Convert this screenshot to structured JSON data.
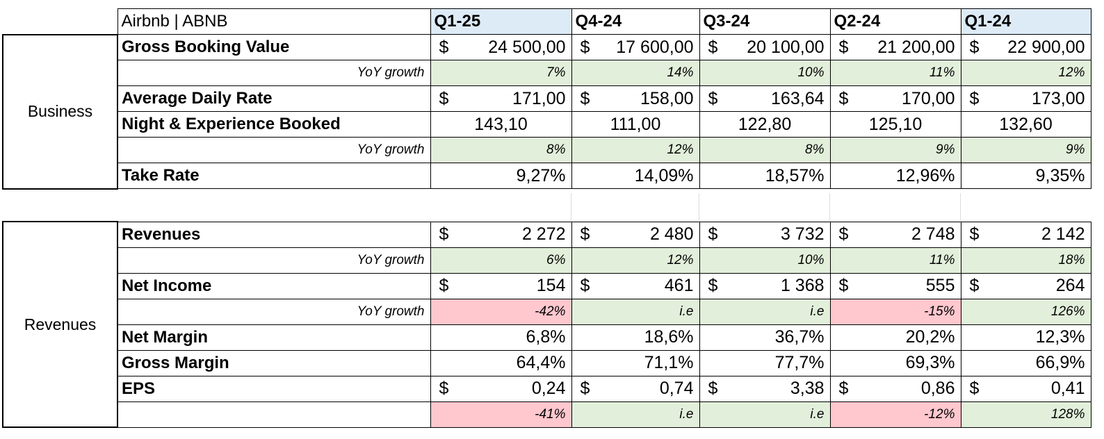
{
  "header": {
    "title": "Airbnb | ABNB",
    "quarters": [
      "Q1-25",
      "Q4-24",
      "Q3-24",
      "Q2-24",
      "Q1-24"
    ]
  },
  "business": {
    "section_label": "Business",
    "gbv": {
      "label": "Gross Booking Value",
      "currency": "$",
      "values": [
        "24 500,00",
        "17 600,00",
        "20 100,00",
        "21 200,00",
        "22 900,00"
      ]
    },
    "gbv_yoy": {
      "label": "YoY growth",
      "values": [
        "7%",
        "14%",
        "10%",
        "11%",
        "12%"
      ]
    },
    "adr": {
      "label": "Average Daily Rate",
      "currency": "$",
      "values": [
        "171,00",
        "158,00",
        "163,64",
        "170,00",
        "173,00"
      ]
    },
    "nights": {
      "label": "Night & Experience Booked",
      "values": [
        "143,10",
        "111,00",
        "122,80",
        "125,10",
        "132,60"
      ]
    },
    "nights_yoy": {
      "label": "YoY growth",
      "values": [
        "8%",
        "12%",
        "8%",
        "9%",
        "9%"
      ]
    },
    "take_rate": {
      "label": "Take Rate",
      "values": [
        "9,27%",
        "14,09%",
        "18,57%",
        "12,96%",
        "9,35%"
      ]
    }
  },
  "revenues": {
    "section_label": "Revenues",
    "revenues": {
      "label": "Revenues",
      "currency": "$",
      "values": [
        "2 272",
        "2 480",
        "3 732",
        "2 748",
        "2 142"
      ]
    },
    "revenues_yoy": {
      "label": "YoY growth",
      "values": [
        "6%",
        "12%",
        "10%",
        "11%",
        "18%"
      ]
    },
    "net_income": {
      "label": "Net Income",
      "currency": "$",
      "values": [
        "154",
        "461",
        "1 368",
        "555",
        "264"
      ]
    },
    "net_income_yoy": {
      "label": "YoY growth",
      "values": [
        "-42%",
        "i.e",
        "i.e",
        "-15%",
        "126%"
      ]
    },
    "net_margin": {
      "label": "Net Margin",
      "values": [
        "6,8%",
        "18,6%",
        "36,7%",
        "20,2%",
        "12,3%"
      ]
    },
    "gross_margin": {
      "label": "Gross Margin",
      "values": [
        "64,4%",
        "71,1%",
        "77,7%",
        "69,3%",
        "66,9%"
      ]
    },
    "eps": {
      "label": "EPS",
      "currency": "$",
      "values": [
        "0,24",
        "0,74",
        "3,38",
        "0,86",
        "0,41"
      ]
    },
    "eps_yoy": {
      "values": [
        "-41%",
        "i.e",
        "i.e",
        "-12%",
        "128%"
      ]
    }
  },
  "colors": {
    "quarter_header_bg": "#ddebf7",
    "positive_growth_bg": "#e2efda",
    "negative_growth_bg": "#ffc7ce"
  }
}
